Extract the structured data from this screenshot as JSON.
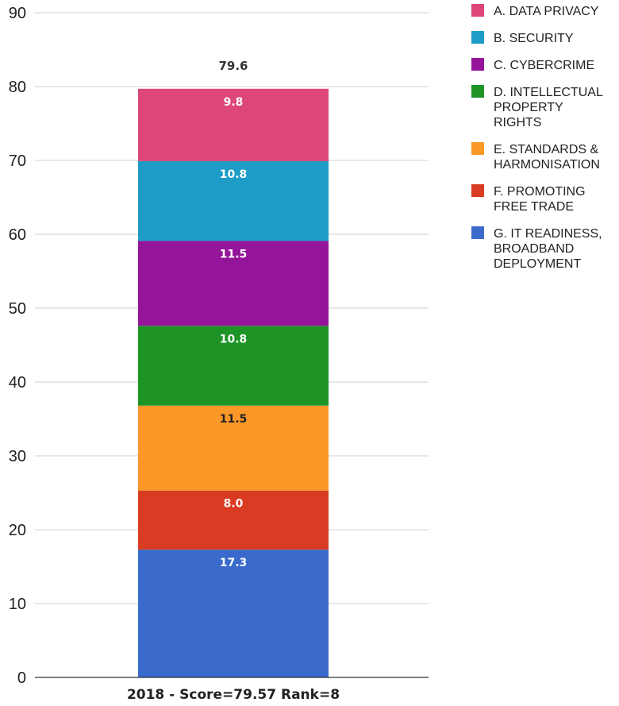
{
  "chart_data": {
    "type": "bar",
    "stacked": true,
    "categories": [
      "2018 - Score=79.57 Rank=8"
    ],
    "ylim": [
      0,
      90
    ],
    "yticks": [
      0,
      10,
      20,
      30,
      40,
      50,
      60,
      70,
      80,
      90
    ],
    "grid": true,
    "legend_position": "right",
    "total_label": "79.6",
    "series": [
      {
        "name": "G. IT READINESS, BROADBAND DEPLOYMENT",
        "values": [
          17.3
        ],
        "label": "17.3",
        "color": "#3a6bcc",
        "label_color": "#ffffff"
      },
      {
        "name": "F. PROMOTING FREE TRADE",
        "values": [
          8.0
        ],
        "label": "8.0",
        "color": "#d93c22",
        "label_color": "#ffffff"
      },
      {
        "name": "E. STANDARDS & HARMONISATION",
        "values": [
          11.5
        ],
        "label": "11.5",
        "color": "#fb9828",
        "label_color": "#222222"
      },
      {
        "name": "D. INTELLECTUAL PROPERTY RIGHTS",
        "values": [
          10.8
        ],
        "label": "10.8",
        "color": "#1e9426",
        "label_color": "#ffffff"
      },
      {
        "name": "C. CYBERCRIME",
        "values": [
          11.5
        ],
        "label": "11.5",
        "color": "#941599",
        "label_color": "#ffffff"
      },
      {
        "name": "B. SECURITY",
        "values": [
          10.8
        ],
        "label": "10.8",
        "color": "#1d9cc7",
        "label_color": "#ffffff"
      },
      {
        "name": "A. DATA PRIVACY",
        "values": [
          9.8
        ],
        "label": "9.8",
        "color": "#dc4678",
        "label_color": "#ffffff"
      }
    ],
    "legend": [
      {
        "lines": [
          "A. DATA PRIVACY"
        ],
        "color": "#dc4678"
      },
      {
        "lines": [
          "B. SECURITY"
        ],
        "color": "#1d9cc7"
      },
      {
        "lines": [
          "C. CYBERCRIME"
        ],
        "color": "#941599"
      },
      {
        "lines": [
          "D. INTELLECTUAL",
          "PROPERTY",
          "RIGHTS"
        ],
        "color": "#1e9426"
      },
      {
        "lines": [
          "E. STANDARDS &",
          "HARMONISATION"
        ],
        "color": "#fb9828"
      },
      {
        "lines": [
          "F. PROMOTING",
          "FREE TRADE"
        ],
        "color": "#d93c22"
      },
      {
        "lines": [
          "G. IT READINESS,",
          "BROADBAND",
          "DEPLOYMENT"
        ],
        "color": "#3a6bcc"
      }
    ]
  }
}
